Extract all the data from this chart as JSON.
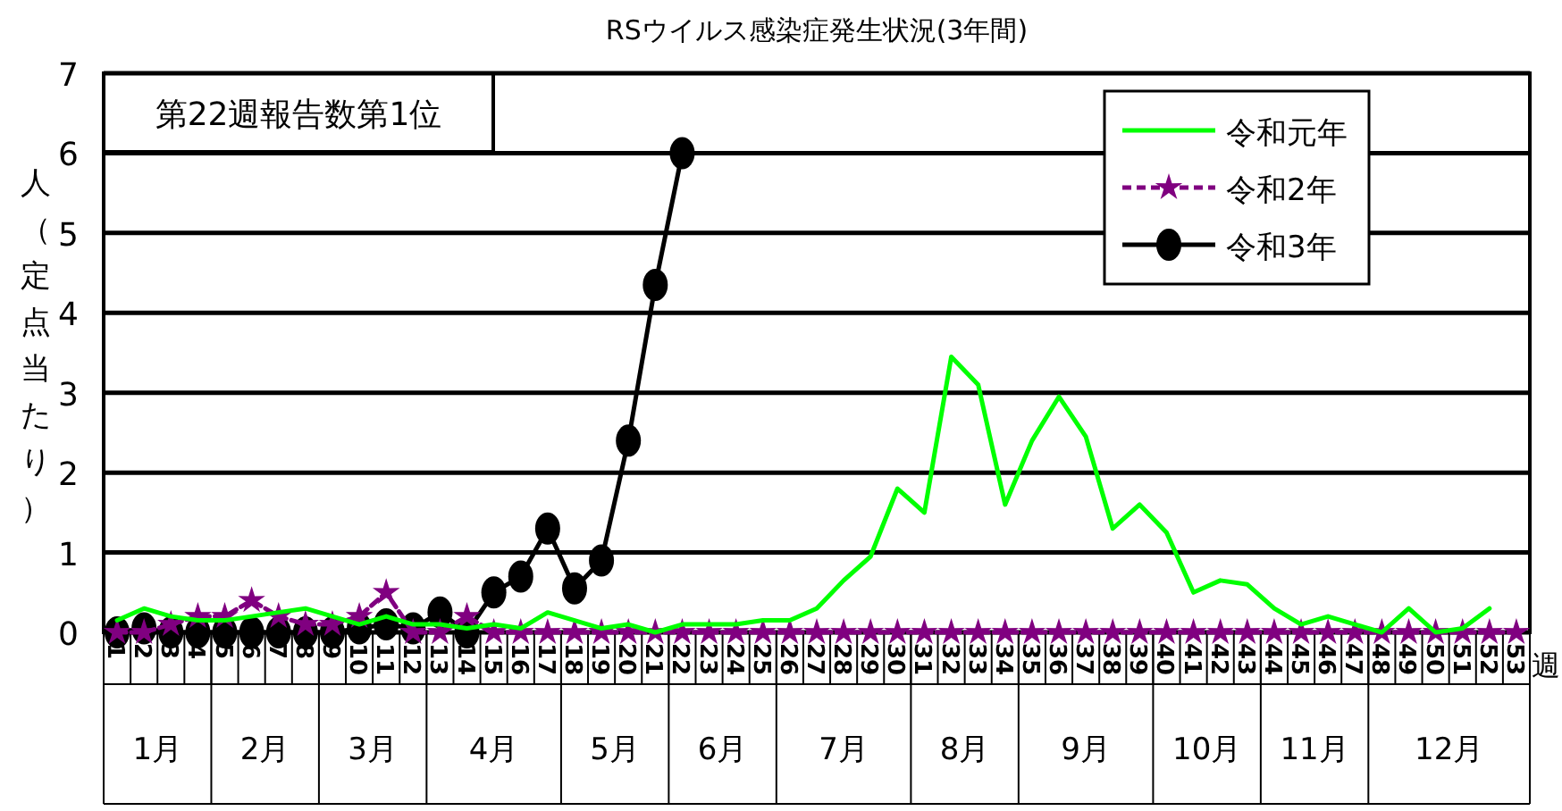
{
  "chart_data": {
    "type": "line",
    "title": "RSウイルス感染症発生状況(3年間)",
    "ylabel": "人（定点当たり）",
    "xlabel": "週",
    "categories": [
      "1",
      "2",
      "3",
      "4",
      "5",
      "6",
      "7",
      "8",
      "9",
      "10",
      "11",
      "12",
      "13",
      "14",
      "15",
      "16",
      "17",
      "18",
      "19",
      "20",
      "21",
      "22",
      "23",
      "24",
      "25",
      "26",
      "27",
      "28",
      "29",
      "30",
      "31",
      "32",
      "33",
      "34",
      "35",
      "36",
      "37",
      "38",
      "39",
      "40",
      "41",
      "42",
      "43",
      "44",
      "45",
      "46",
      "47",
      "48",
      "49",
      "50",
      "51",
      "52",
      "53"
    ],
    "series": [
      {
        "name": "令和元年",
        "color": "#00ff00",
        "marker": "none",
        "line_style": "solid",
        "values": [
          0.15,
          0.3,
          0.2,
          0.15,
          0.15,
          0.2,
          0.25,
          0.3,
          0.2,
          0.1,
          0.2,
          0.1,
          0.1,
          0.05,
          0.1,
          0.05,
          0.25,
          0.15,
          0.05,
          0.1,
          0.0,
          0.1,
          0.1,
          0.1,
          0.15,
          0.15,
          0.3,
          0.65,
          0.95,
          1.8,
          1.5,
          3.45,
          3.1,
          1.6,
          2.4,
          2.95,
          2.45,
          1.3,
          1.6,
          1.25,
          0.5,
          0.65,
          0.6,
          0.3,
          0.1,
          0.2,
          0.1,
          0.0,
          0.3,
          0.0,
          0.05,
          0.3,
          null
        ]
      },
      {
        "name": "令和2年",
        "color": "#800080",
        "marker": "star",
        "line_style": "dashed",
        "values": [
          0,
          0,
          0.1,
          0.2,
          0.2,
          0.4,
          0.2,
          0.1,
          0.1,
          0.2,
          0.5,
          0,
          0,
          0.2,
          0,
          0,
          0,
          0,
          0,
          0,
          0,
          0,
          0,
          0,
          0,
          0,
          0,
          0,
          0,
          0,
          0,
          0,
          0,
          0,
          0,
          0,
          0,
          0,
          0,
          0,
          0,
          0,
          0,
          0,
          0,
          0,
          0,
          0,
          0,
          0,
          0,
          0,
          0
        ]
      },
      {
        "name": "令和3年",
        "color": "#000000",
        "marker": "circle",
        "line_style": "solid",
        "values": [
          0,
          0.05,
          0,
          0,
          0,
          0,
          0,
          0,
          0,
          0.05,
          0.1,
          0.05,
          0.25,
          0,
          0.5,
          0.7,
          1.3,
          0.55,
          0.9,
          2.4,
          4.35,
          6.0,
          null,
          null,
          null,
          null,
          null,
          null,
          null,
          null,
          null,
          null,
          null,
          null,
          null,
          null,
          null,
          null,
          null,
          null,
          null,
          null,
          null,
          null,
          null,
          null,
          null,
          null,
          null,
          null,
          null,
          null,
          null
        ]
      }
    ],
    "ylim": [
      0,
      7
    ],
    "yticks": [
      0,
      1,
      2,
      3,
      4,
      5,
      6,
      7
    ],
    "grid": "y",
    "legend": "top right",
    "annotations": [
      "第22週報告数第1位",
      "1月",
      "2月",
      "3月",
      "4月",
      "5月",
      "6月",
      "7月",
      "8月",
      "9月",
      "10月",
      "11月",
      "12月"
    ]
  }
}
